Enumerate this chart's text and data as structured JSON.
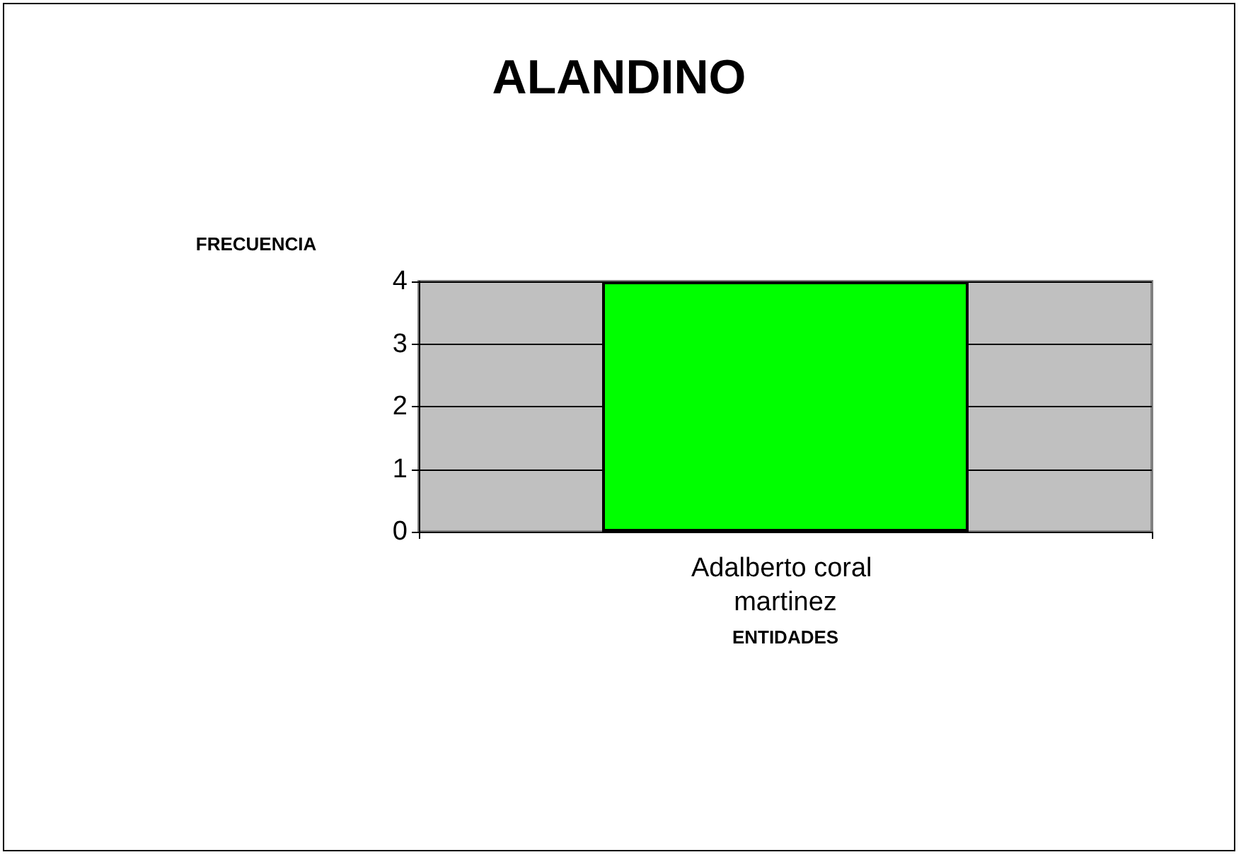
{
  "chart_data": {
    "type": "bar",
    "title": "ALANDINO",
    "xlabel": "ENTIDADES",
    "ylabel": "FRECUENCIA",
    "categories": [
      "Adalberto coral martinez"
    ],
    "values": [
      4
    ],
    "color": "#00ff00",
    "ylim": [
      0,
      4
    ],
    "yticks": [
      0,
      1,
      2,
      3,
      4
    ],
    "grid": "y"
  }
}
